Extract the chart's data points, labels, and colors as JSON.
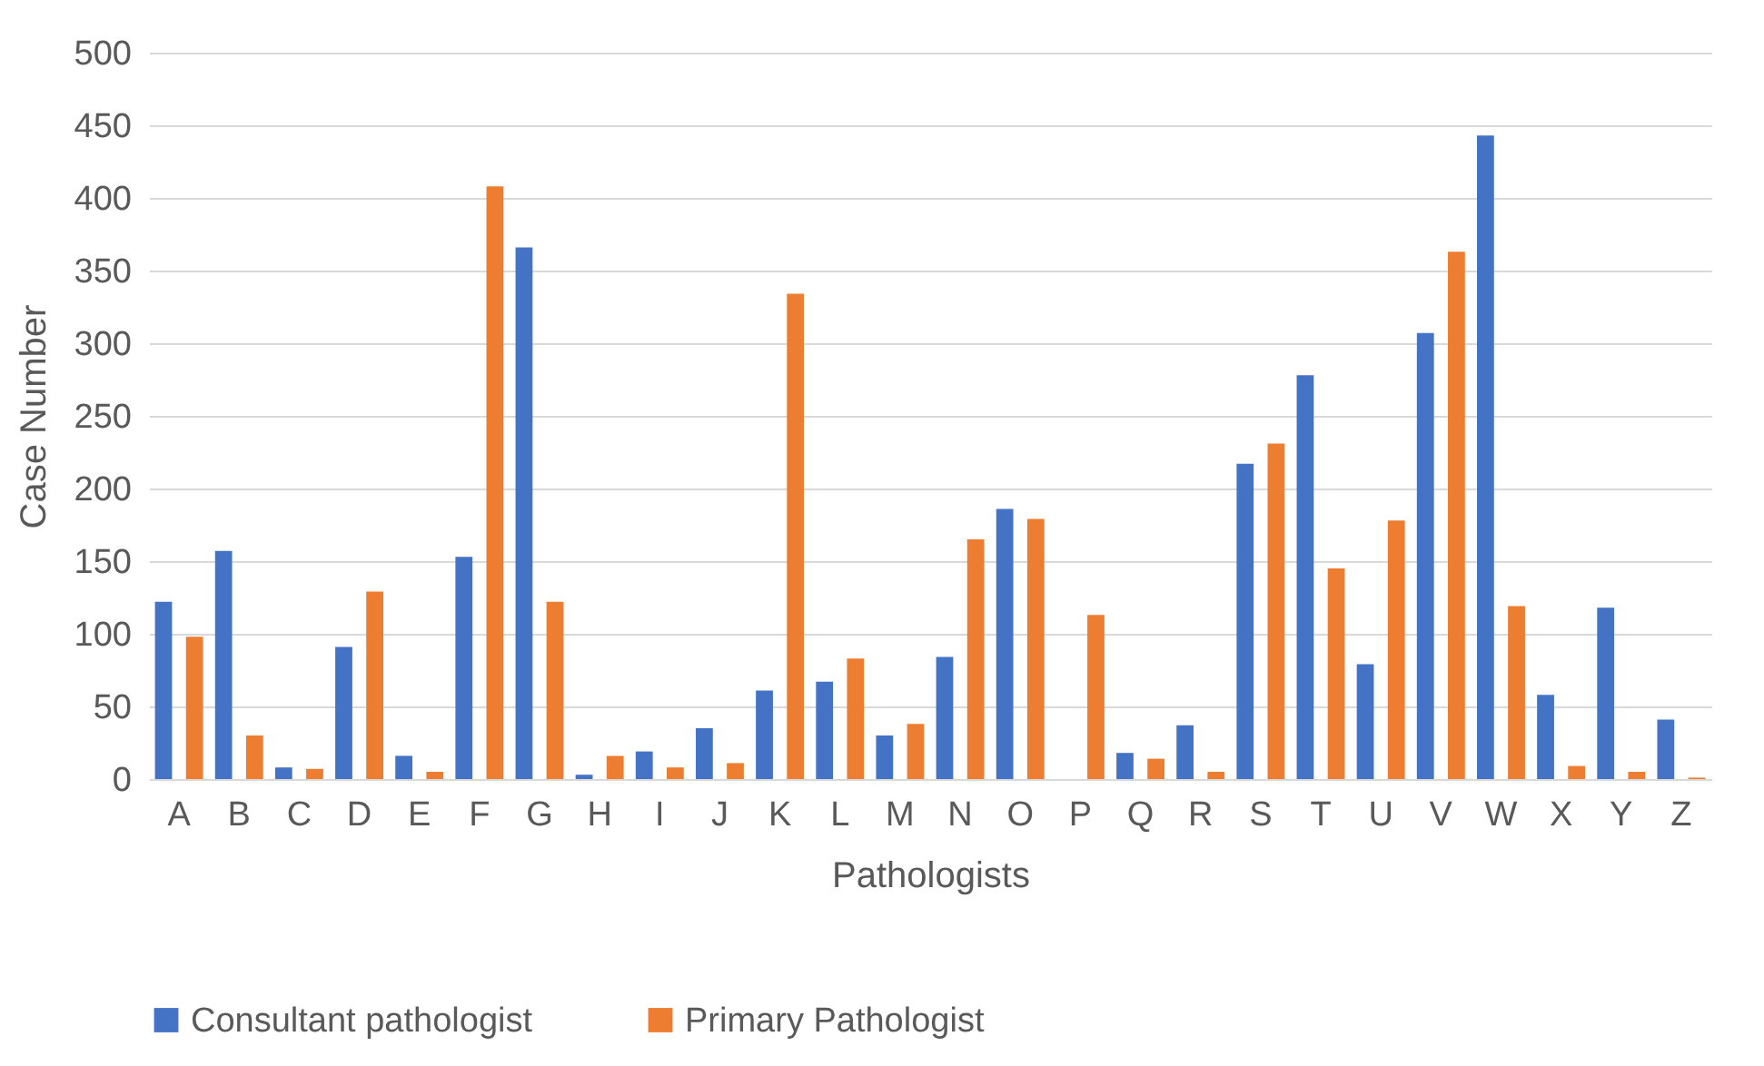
{
  "chart_data": {
    "type": "bar",
    "xlabel": "Pathologists",
    "ylabel": "Case Number",
    "categories": [
      "A",
      "B",
      "C",
      "D",
      "E",
      "F",
      "G",
      "H",
      "I",
      "J",
      "K",
      "L",
      "M",
      "N",
      "O",
      "P",
      "Q",
      "R",
      "S",
      "T",
      "U",
      "V",
      "W",
      "X",
      "Y",
      "Z"
    ],
    "series": [
      {
        "name": "Consultant pathologist",
        "color": "#4472c4",
        "values": [
          122,
          157,
          8,
          91,
          16,
          153,
          366,
          3,
          19,
          35,
          61,
          67,
          30,
          84,
          186,
          null,
          18,
          37,
          217,
          278,
          79,
          307,
          443,
          58,
          118,
          41
        ]
      },
      {
        "name": "Primary Pathologist",
        "color": "#ed7d31",
        "values": [
          98,
          30,
          7,
          129,
          5,
          408,
          122,
          16,
          8,
          11,
          334,
          83,
          38,
          165,
          179,
          113,
          14,
          5,
          231,
          145,
          178,
          363,
          119,
          9,
          5,
          1
        ]
      }
    ],
    "ylim": [
      0,
      500
    ],
    "yticks": [
      0,
      50,
      100,
      150,
      200,
      250,
      300,
      350,
      400,
      450,
      500
    ],
    "grid": "y",
    "legend": "bottom"
  }
}
